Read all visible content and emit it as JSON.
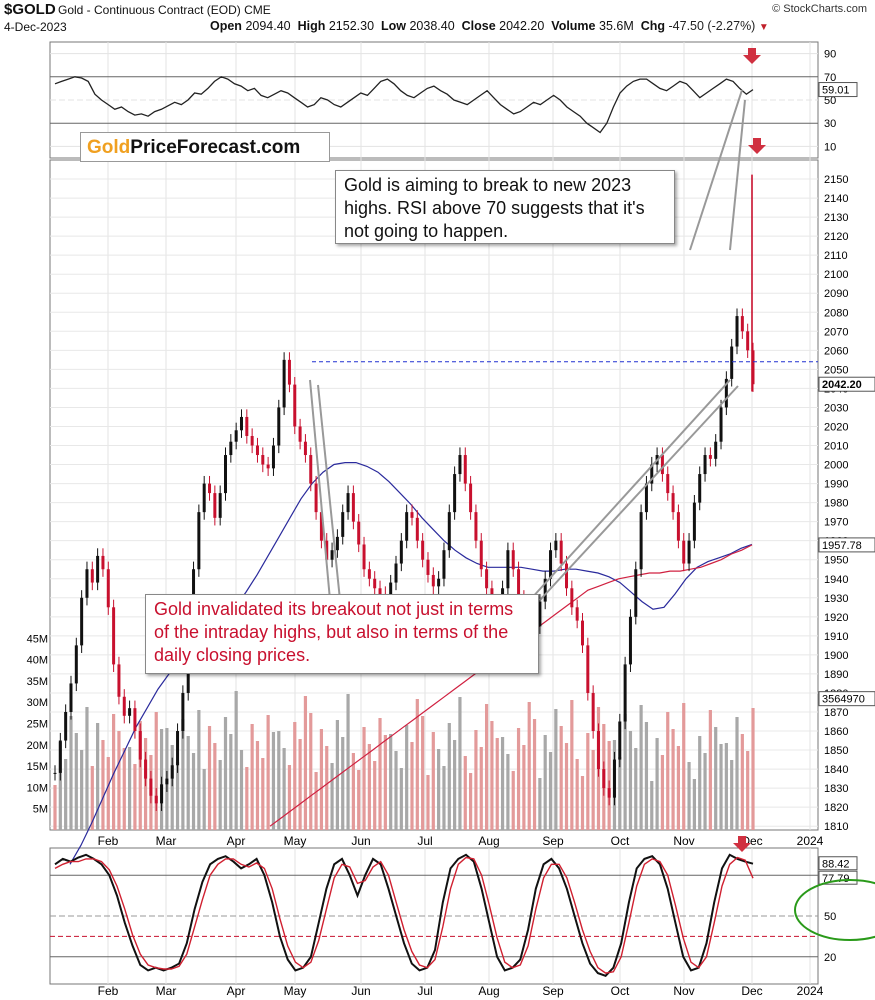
{
  "header": {
    "ticker": "$GOLD",
    "subtitle": "Gold - Continuous Contract (EOD) CME",
    "brand": "© StockCharts.com",
    "date": "4-Dec-2023",
    "open_label": "Open",
    "open": "2094.40",
    "high_label": "High",
    "high": "2152.30",
    "low_label": "Low",
    "low": "2038.40",
    "close_label": "Close",
    "close": "2042.20",
    "volume_label": "Volume",
    "volume": "35.6M",
    "chg_label": "Chg",
    "chg": "-47.50 (-2.27%)"
  },
  "logo": {
    "part1": "Gold",
    "part2": "PriceForecast.com"
  },
  "annotations": {
    "top": "Gold is aiming to break to new 2023 highs. RSI above 70 suggests that it's not going to happen.",
    "bottom": "Gold invalidated its breakout not just in terms of the intraday highs, but also in terms of the daily closing prices."
  },
  "colors": {
    "up": "#111111",
    "down": "#c8102e",
    "ma50": "#2a2a9c",
    "ma200": "#d02040",
    "vol_up": "#a8a8a8",
    "vol_down": "#e39a9a",
    "resistance": "#2030d0",
    "arrow": "#d03040",
    "ellipse": "#2a9a1a"
  },
  "chart_data": [
    {
      "type": "line",
      "name_panel": "rsi",
      "ylim": [
        0,
        100
      ],
      "y_ticks": [
        10,
        30,
        50,
        70,
        90
      ],
      "last_value_label": "59.01",
      "values": [
        64,
        66,
        68,
        70,
        69,
        66,
        55,
        50,
        46,
        42,
        44,
        40,
        37,
        38,
        36,
        40,
        42,
        45,
        48,
        46,
        50,
        56,
        55,
        60,
        66,
        70,
        68,
        64,
        62,
        58,
        60,
        54,
        52,
        55,
        58,
        56,
        52,
        48,
        44,
        46,
        52,
        50,
        46,
        44,
        48,
        52,
        56,
        54,
        60,
        66,
        68,
        64,
        58,
        54,
        52,
        56,
        60,
        62,
        58,
        55,
        50,
        48,
        46,
        50,
        54,
        58,
        52,
        46,
        42,
        38,
        40,
        44,
        48,
        46,
        50,
        54,
        50,
        44,
        40,
        36,
        30,
        26,
        22,
        30,
        44,
        56,
        62,
        66,
        68,
        68,
        64,
        60,
        58,
        62,
        66,
        64,
        58,
        52,
        56,
        60,
        64,
        68,
        66,
        60,
        55,
        59
      ]
    },
    {
      "type": "candlestick",
      "name_panel": "price",
      "ylim": [
        1808,
        2160
      ],
      "y_ticks": [
        1810,
        1820,
        1830,
        1840,
        1850,
        1860,
        1870,
        1880,
        1890,
        1900,
        1910,
        1920,
        1930,
        1940,
        1950,
        1960,
        1970,
        1980,
        1990,
        2000,
        2010,
        2020,
        2030,
        2040,
        2050,
        2060,
        2070,
        2080,
        2090,
        2100,
        2110,
        2120,
        2130,
        2140,
        2150
      ],
      "x_labels": [
        "Feb",
        "Mar",
        "Apr",
        "May",
        "Jun",
        "Jul",
        "Aug",
        "Sep",
        "Oct",
        "Nov",
        "Dec",
        "2024"
      ],
      "closes": [
        1838,
        1855,
        1870,
        1885,
        1905,
        1930,
        1945,
        1938,
        1952,
        1945,
        1925,
        1895,
        1878,
        1868,
        1872,
        1860,
        1845,
        1835,
        1826,
        1822,
        1832,
        1835,
        1842,
        1860,
        1880,
        1910,
        1945,
        1975,
        1990,
        1985,
        1972,
        1985,
        2005,
        2012,
        2018,
        2025,
        2015,
        2010,
        2005,
        2000,
        1998,
        2010,
        2030,
        2055,
        2042,
        2020,
        2012,
        2005,
        1990,
        1975,
        1960,
        1950,
        1955,
        1962,
        1975,
        1985,
        1970,
        1958,
        1945,
        1940,
        1935,
        1932,
        1925,
        1938,
        1948,
        1960,
        1975,
        1972,
        1960,
        1950,
        1942,
        1936,
        1940,
        1955,
        1975,
        1995,
        2005,
        1990,
        1975,
        1960,
        1945,
        1935,
        1925,
        1920,
        1935,
        1955,
        1945,
        1930,
        1928,
        1920,
        1915,
        1928,
        1940,
        1955,
        1960,
        1948,
        1935,
        1925,
        1918,
        1905,
        1880,
        1860,
        1840,
        1830,
        1825,
        1845,
        1865,
        1895,
        1920,
        1945,
        1975,
        1990,
        2000,
        2005,
        1995,
        1985,
        1975,
        1960,
        1948,
        1960,
        1980,
        1995,
        2005,
        2003,
        2012,
        2030,
        2045,
        2062,
        2078,
        2070,
        2060,
        2042.2
      ],
      "price_labels": [
        "2042.20",
        "1957.78",
        "3564970"
      ],
      "resistance_level": 2054,
      "ma50": [
        1790,
        1800,
        1812,
        1825,
        1838,
        1850,
        1862,
        1872,
        1882,
        1890,
        1897,
        1903,
        1908,
        1913,
        1918,
        1925,
        1933,
        1942,
        1952,
        1962,
        1972,
        1982,
        1990,
        1996,
        2000,
        2001,
        2001,
        1999,
        1996,
        1991,
        1985,
        1979,
        1972,
        1966,
        1960,
        1955,
        1951,
        1948,
        1946,
        1946,
        1946,
        1946,
        1945,
        1944,
        1944,
        1945,
        1945,
        1944,
        1943,
        1941,
        1938,
        1933,
        1928,
        1924,
        1925,
        1932,
        1940,
        1946,
        1949,
        1951,
        1953,
        1956,
        1958
      ],
      "ma200": [
        1810,
        1814,
        1818,
        1822,
        1826,
        1830,
        1834,
        1838,
        1842,
        1846,
        1850,
        1854,
        1858,
        1862,
        1866,
        1870,
        1874,
        1878,
        1882,
        1886,
        1890,
        1894,
        1898,
        1902,
        1906,
        1910,
        1914,
        1918,
        1922,
        1926,
        1930,
        1934,
        1936,
        1938,
        1940,
        1941,
        1942,
        1943,
        1943,
        1944,
        1944,
        1945,
        1946,
        1948,
        1950,
        1953,
        1955,
        1957.78
      ],
      "volume_ticks": [
        "5M",
        "10M",
        "15M",
        "20M",
        "25M",
        "30M",
        "35M",
        "40M",
        "45M"
      ]
    },
    {
      "type": "line",
      "name_panel": "stochastic",
      "ylim": [
        0,
        100
      ],
      "y_ticks": [
        20,
        50,
        80
      ],
      "last_value_labels": [
        "88.42",
        "77.79"
      ],
      "series": [
        {
          "values": [
            88,
            92,
            90,
            93,
            95,
            92,
            88,
            80,
            65,
            45,
            28,
            14,
            10,
            12,
            10,
            12,
            15,
            30,
            55,
            75,
            88,
            92,
            94,
            90,
            85,
            88,
            92,
            80,
            60,
            35,
            18,
            10,
            12,
            20,
            45,
            70,
            88,
            92,
            80,
            65,
            80,
            92,
            88,
            70,
            50,
            30,
            15,
            10,
            12,
            25,
            60,
            85,
            92,
            95,
            90,
            70,
            45,
            20,
            10,
            12,
            18,
            40,
            70,
            88,
            92,
            85,
            70,
            50,
            30,
            15,
            8,
            6,
            12,
            30,
            60,
            85,
            92,
            94,
            88,
            70,
            45,
            20,
            10,
            12,
            30,
            60,
            85,
            95,
            92,
            90,
            88.42
          ]
        },
        {
          "values": [
            85,
            88,
            90,
            90,
            92,
            92,
            90,
            84,
            72,
            55,
            36,
            22,
            14,
            12,
            11,
            11,
            13,
            22,
            42,
            62,
            80,
            88,
            92,
            92,
            88,
            86,
            89,
            85,
            70,
            48,
            28,
            16,
            12,
            16,
            32,
            55,
            78,
            88,
            86,
            74,
            76,
            86,
            90,
            80,
            60,
            40,
            24,
            14,
            12,
            18,
            42,
            70,
            88,
            93,
            92,
            80,
            58,
            34,
            16,
            12,
            14,
            28,
            55,
            78,
            88,
            88,
            78,
            60,
            40,
            24,
            12,
            8,
            9,
            20,
            45,
            72,
            88,
            92,
            90,
            80,
            58,
            34,
            16,
            12,
            20,
            45,
            72,
            88,
            93,
            91,
            77.79
          ]
        }
      ]
    }
  ]
}
